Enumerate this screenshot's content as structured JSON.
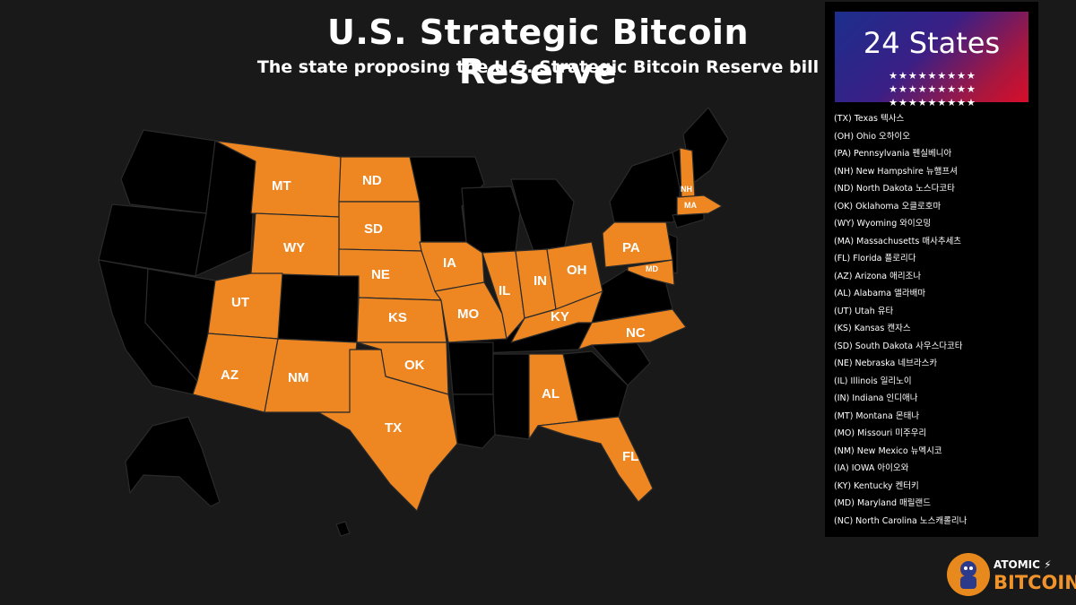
{
  "header": {
    "title": "U.S. Strategic Bitcoin Reserve",
    "subtitle": "The state proposing the U.S. Strategic Bitcoin Reserve bill"
  },
  "badge": {
    "title": "24 States",
    "stars": "★★★★★★★★★ ★★★★★★★★★ ★★★★★★★★★"
  },
  "colors": {
    "background": "#191919",
    "proposing_state": "#ee8722",
    "other_state": "#000000",
    "state_border": "#2a2a2a"
  },
  "states_list": [
    "(TX) Texas 텍사스",
    "(OH) Ohio 오하이오",
    "(PA) Pennsylvania 펜실베니아",
    "(NH) New Hampshire 뉴햄프셔",
    "(ND) North Dakota 노스다코타",
    "(OK) Oklahoma 오클로호마",
    "(WY) Wyoming 와이오밍",
    "(MA) Massachusetts 매사추세츠",
    "(FL) Florida 플로리다",
    "(AZ) Arizona 애리조나",
    "(AL) Alabama 앨라배마",
    "(UT) Utah 유타",
    "(KS) Kansas 캔자스",
    "(SD) South Dakota 사우스다코타",
    "(NE) Nebraska 네브라스카",
    "(IL) Illinois 일리노이",
    "(IN) Indiana 인디애나",
    "(MT) Montana 몬태나",
    "(MO) Missouri 미주우리",
    "(NM) New Mexico 뉴멕시코",
    "(IA) IOWA 아이오와",
    "(KY) Kentucky 켄터키",
    "(MD) Maryland 매릴랜드",
    "(NC) North Carolina 노스캐롤리나"
  ],
  "map_labels": {
    "MT": "MT",
    "ND": "ND",
    "SD": "SD",
    "WY": "WY",
    "NE": "NE",
    "UT": "UT",
    "IA": "IA",
    "IL": "IL",
    "IN": "IN",
    "OH": "OH",
    "PA": "PA",
    "NH": "NH",
    "MA": "MA",
    "MD": "MD",
    "KS": "KS",
    "MO": "MO",
    "KY": "KY",
    "NC": "NC",
    "AZ": "AZ",
    "NM": "NM",
    "OK": "OK",
    "TX": "TX",
    "AL": "AL",
    "FL": "FL"
  },
  "logo": {
    "line1": "ATOMIC ⚡",
    "line2": "BITCOIN"
  }
}
